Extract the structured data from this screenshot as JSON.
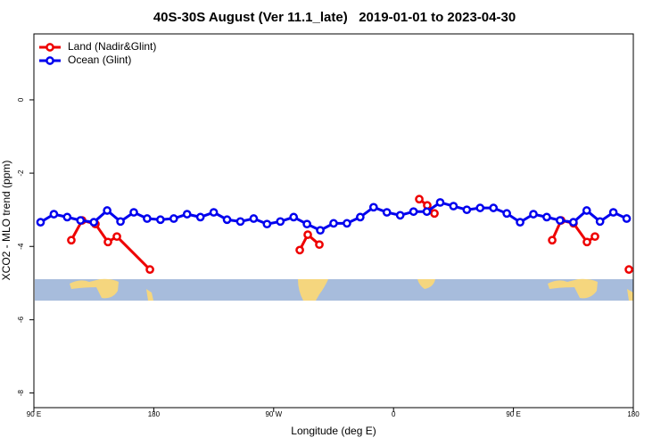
{
  "chart_data": {
    "type": "line",
    "title": "40S-30S August (Ver 11.1_late)   2019-01-01 to 2023-04-30",
    "x_label": "Longitude (deg E)",
    "y_label": "XCO2 - MLO trend (ppm)",
    "xlim": [
      90,
      540
    ],
    "ylim": [
      -8.4,
      1.8
    ],
    "xticks": [
      {
        "value": 90,
        "label": "90 E"
      },
      {
        "value": 180,
        "label": "180"
      },
      {
        "value": 270,
        "label": "90 W"
      },
      {
        "value": 360,
        "label": "0"
      },
      {
        "value": 450,
        "label": "90 E"
      },
      {
        "value": 540,
        "label": "180"
      }
    ],
    "yticks": [
      0,
      -2,
      -4,
      -6,
      -8
    ],
    "legend": "top-left",
    "series": [
      {
        "name": "Land (Nadir&Glint)",
        "color": "#ee0000",
        "x": [
          118.1,
          126.2,
          136.2,
          145.6,
          152.3,
          177.1,
          null,
          289.6,
          295.6,
          304.3,
          null,
          379.3,
          385.3,
          390.7,
          null,
          479.1,
          485.8,
          495.1,
          505.2,
          511.2,
          null,
          536.7
        ],
        "values": [
          -3.83,
          -3.29,
          -3.39,
          -3.88,
          -3.73,
          -4.63,
          null,
          -4.1,
          -3.68,
          -3.95,
          null,
          -2.71,
          -2.88,
          -3.1,
          null,
          -3.83,
          -3.29,
          -3.37,
          -3.88,
          -3.73,
          null,
          -4.63
        ]
      },
      {
        "name": "Ocean (Glint)",
        "color": "#0000ee",
        "x": [
          95,
          105,
          115,
          125,
          135,
          145,
          155,
          165,
          175,
          185,
          195,
          205,
          215,
          225,
          235,
          245,
          255,
          265,
          275,
          285,
          295,
          305,
          315,
          325,
          335,
          345,
          355,
          365,
          375,
          385,
          395,
          405,
          415,
          425,
          435,
          445,
          455,
          465,
          475,
          485,
          495,
          505,
          515,
          525,
          535
        ],
        "values": [
          -3.34,
          -3.12,
          -3.2,
          -3.29,
          -3.34,
          -3.02,
          -3.32,
          -3.07,
          -3.24,
          -3.27,
          -3.24,
          -3.12,
          -3.2,
          -3.07,
          -3.27,
          -3.32,
          -3.24,
          -3.39,
          -3.32,
          -3.2,
          -3.39,
          -3.56,
          -3.37,
          -3.37,
          -3.2,
          -2.93,
          -3.07,
          -3.15,
          -3.05,
          -3.05,
          -2.8,
          -2.9,
          -3.0,
          -2.95,
          -2.95,
          -3.1,
          -3.34,
          -3.12,
          -3.2,
          -3.29,
          -3.34,
          -3.02,
          -3.32,
          -3.07,
          -3.24
        ]
      }
    ]
  }
}
